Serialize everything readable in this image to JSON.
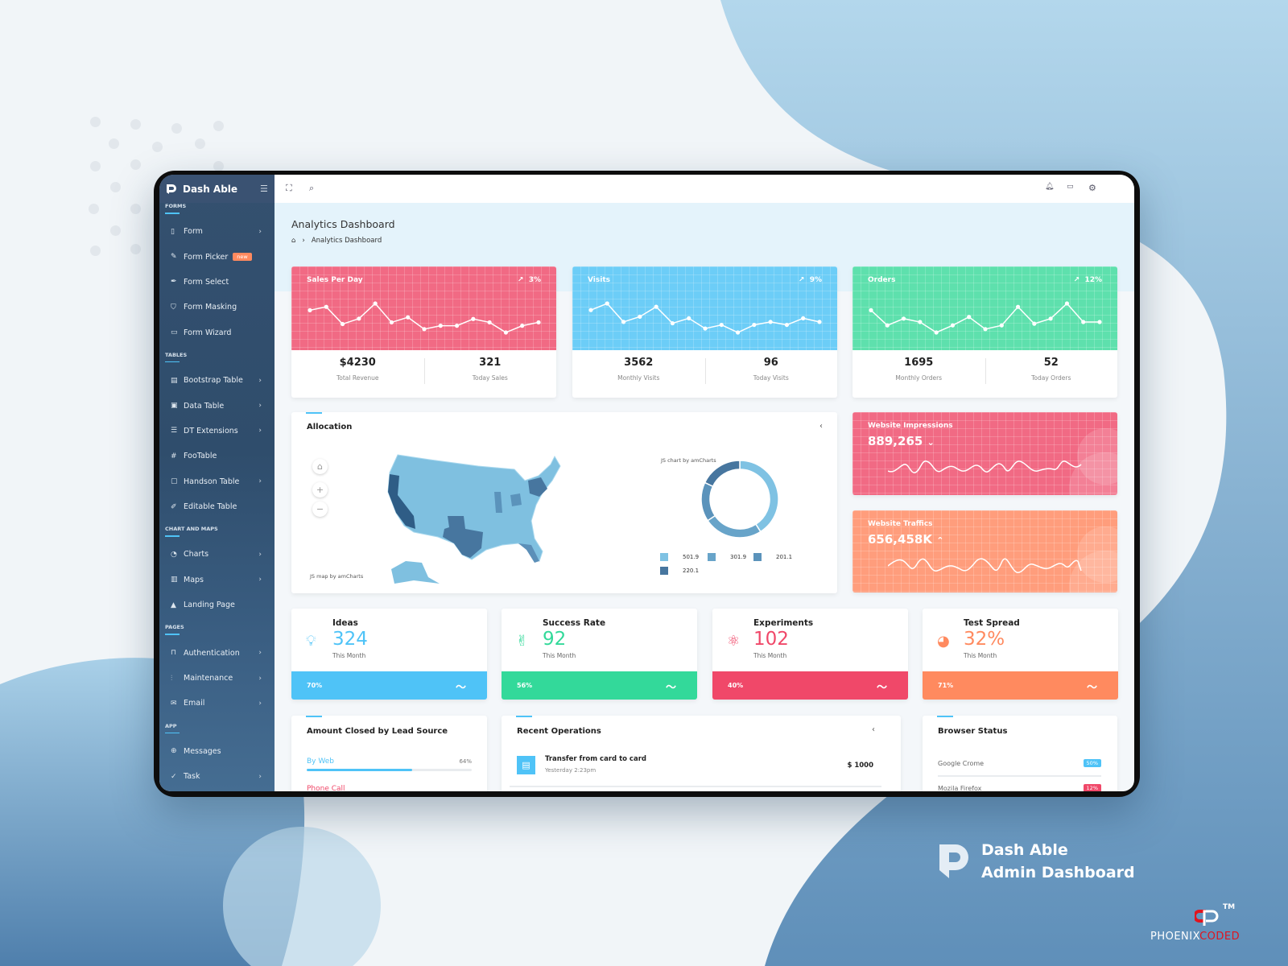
{
  "brand": {
    "name": "Dash Able"
  },
  "sidebar": {
    "sections": [
      {
        "label": "FORMS",
        "items": [
          {
            "label": "Form",
            "icon": "clipboard-icon",
            "chevron": true
          },
          {
            "label": "Form Picker",
            "icon": "pen-icon",
            "badge": "new"
          },
          {
            "label": "Form Select",
            "icon": "feather-icon"
          },
          {
            "label": "Form Masking",
            "icon": "shield-icon"
          },
          {
            "label": "Form Wizard",
            "icon": "tv-icon"
          }
        ]
      },
      {
        "label": "TABLES",
        "items": [
          {
            "label": "Bootstrap Table",
            "icon": "credit-card-icon",
            "chevron": true
          },
          {
            "label": "Data Table",
            "icon": "inbox-icon",
            "chevron": true
          },
          {
            "label": "DT Extensions",
            "icon": "server-icon",
            "chevron": true
          },
          {
            "label": "FooTable",
            "icon": "hash-icon"
          },
          {
            "label": "Handson Table",
            "icon": "monitor-icon",
            "chevron": true
          },
          {
            "label": "Editable Table",
            "icon": "edit-icon"
          }
        ]
      },
      {
        "label": "CHART AND MAPS",
        "items": [
          {
            "label": "Charts",
            "icon": "pie-chart-icon",
            "chevron": true
          },
          {
            "label": "Maps",
            "icon": "map-icon",
            "chevron": true
          },
          {
            "label": "Landing Page",
            "icon": "navigation-icon"
          }
        ]
      },
      {
        "label": "PAGES",
        "items": [
          {
            "label": "Authentication",
            "icon": "lock-icon",
            "chevron": true
          },
          {
            "label": "Maintenance",
            "icon": "sliders-icon",
            "chevron": true
          },
          {
            "label": "Email",
            "icon": "mail-icon",
            "chevron": true
          }
        ]
      },
      {
        "label": "APP",
        "items": [
          {
            "label": "Messages",
            "icon": "globe-icon"
          },
          {
            "label": "Task",
            "icon": "check-circle-icon",
            "chevron": true
          }
        ]
      }
    ]
  },
  "header": {
    "title": "Analytics Dashboard",
    "breadcrumb": [
      "Analytics Dashboard"
    ]
  },
  "top_cards": [
    {
      "title": "Sales Per Day",
      "trend": "3%",
      "color": "#f16a84",
      "spark": [
        73,
        83,
        32,
        48,
        93,
        37,
        52,
        17,
        27,
        27,
        47,
        37,
        7,
        27,
        37
      ],
      "stats": [
        {
          "value": "$4230",
          "label": "Total Revenue"
        },
        {
          "value": "321",
          "label": "Today Sales"
        }
      ]
    },
    {
      "title": "Visits",
      "trend": "9%",
      "color": "#6ccdf7",
      "spark": [
        73,
        93,
        37,
        53,
        83,
        33,
        48,
        17,
        28,
        5,
        28,
        37,
        28,
        48,
        37
      ],
      "stats": [
        {
          "value": "3562",
          "label": "Monthly Visits"
        },
        {
          "value": "96",
          "label": "Today Visits"
        }
      ]
    },
    {
      "title": "Orders",
      "trend": "12%",
      "color": "#5ee0ad",
      "spark": [
        83,
        38,
        58,
        48,
        17,
        38,
        63,
        27,
        38,
        93,
        43,
        58,
        103,
        48,
        48
      ],
      "stats": [
        {
          "value": "1695",
          "label": "Monthly Orders"
        },
        {
          "value": "52",
          "label": "Today Orders"
        }
      ]
    }
  ],
  "allocation": {
    "title": "Allocation",
    "map_credit": "JS map by amCharts",
    "chart_credit": "JS chart by amCharts",
    "donut": [
      {
        "value": 501.9,
        "color": "#7fc2e3"
      },
      {
        "value": 301.9,
        "color": "#68a4c9"
      },
      {
        "value": 201.1,
        "color": "#5b93bb"
      },
      {
        "value": 220.1,
        "color": "#47769f"
      }
    ],
    "legend": [
      "501.9",
      "301.9",
      "201.1",
      "220.1"
    ]
  },
  "impressions": {
    "title": "Website Impressions",
    "value": "889,265",
    "direction": "down",
    "color": "#f16a84"
  },
  "traffic": {
    "title": "Website Traffics",
    "value": "656,458K",
    "direction": "up",
    "color": "#ff9d7c"
  },
  "stat_cards": [
    {
      "title": "Ideas",
      "value": "324",
      "sub": "This Month",
      "percent": "70%",
      "color": "#4fc3f7",
      "icon": "lightbulb-icon"
    },
    {
      "title": "Success Rate",
      "value": "92",
      "sub": "This Month",
      "percent": "56%",
      "color": "#33d99a",
      "icon": "hand-icon"
    },
    {
      "title": "Experiments",
      "value": "102",
      "sub": "This Month",
      "percent": "40%",
      "color": "#f04869",
      "icon": "atom-icon"
    },
    {
      "title": "Test Spread",
      "value": "32%",
      "sub": "This Month",
      "percent": "71%",
      "color": "#ff8a5f",
      "icon": "pie-chart-icon"
    }
  ],
  "lead_source": {
    "title": "Amount Closed by Lead Source",
    "rows": [
      {
        "label": "By Web",
        "percent": "64%",
        "fill": 64
      },
      {
        "label": "Phone Call"
      }
    ]
  },
  "recent_ops": {
    "title": "Recent Operations",
    "items": [
      {
        "title": "Transfer from card to card",
        "time": "Yesterday 2:23pm",
        "amount": "$ 1000"
      }
    ]
  },
  "browser_status": {
    "title": "Browser Status",
    "rows": [
      {
        "label": "Google Crome",
        "badge": "50%",
        "color": "#4fc3f7"
      },
      {
        "label": "Mozila Firefox",
        "badge": "12%",
        "color": "#f04869"
      }
    ]
  },
  "promo": {
    "line1": "Dash Able",
    "line2": "Admin Dashboard",
    "company_a": "PHOENIX",
    "company_b": "CODED",
    "tm": "TM"
  }
}
